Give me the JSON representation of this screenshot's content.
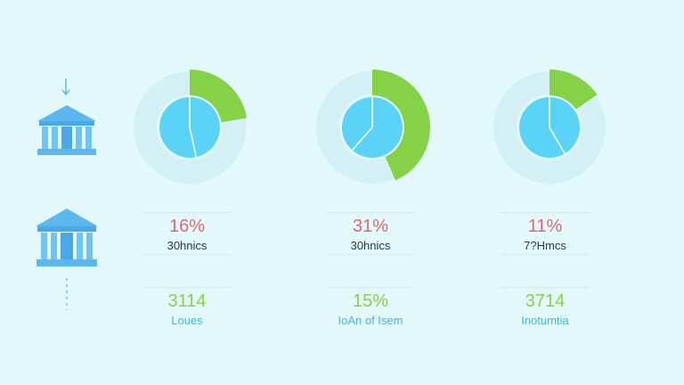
{
  "colors": {
    "background": "#e3f8fa",
    "ring": "#d3f0f5",
    "pie": "#5ad3f6",
    "accent": "#86d247",
    "percent": "#e0676d",
    "bank": "#5cb7ee",
    "secondary_value": "#86d247",
    "secondary_label": "#39b9e0"
  },
  "icons": [
    "arrow-down-icon",
    "bank-icon",
    "bank-icon",
    "dashed-line-icon"
  ],
  "chart_data": [
    {
      "type": "pie",
      "highlight_fraction": 0.16,
      "percent_label": "16%",
      "sub_label": "30hnics",
      "value_label": "3114",
      "name_label": "Loues"
    },
    {
      "type": "pie",
      "highlight_fraction": 0.31,
      "percent_label": "31%",
      "sub_label": "30hnics",
      "value_label": "15%",
      "name_label": "IoAn of Isem"
    },
    {
      "type": "pie",
      "highlight_fraction": 0.11,
      "percent_label": "11%",
      "sub_label": "7?Hmcs",
      "value_label": "3714",
      "name_label": "Inotumtia"
    }
  ]
}
